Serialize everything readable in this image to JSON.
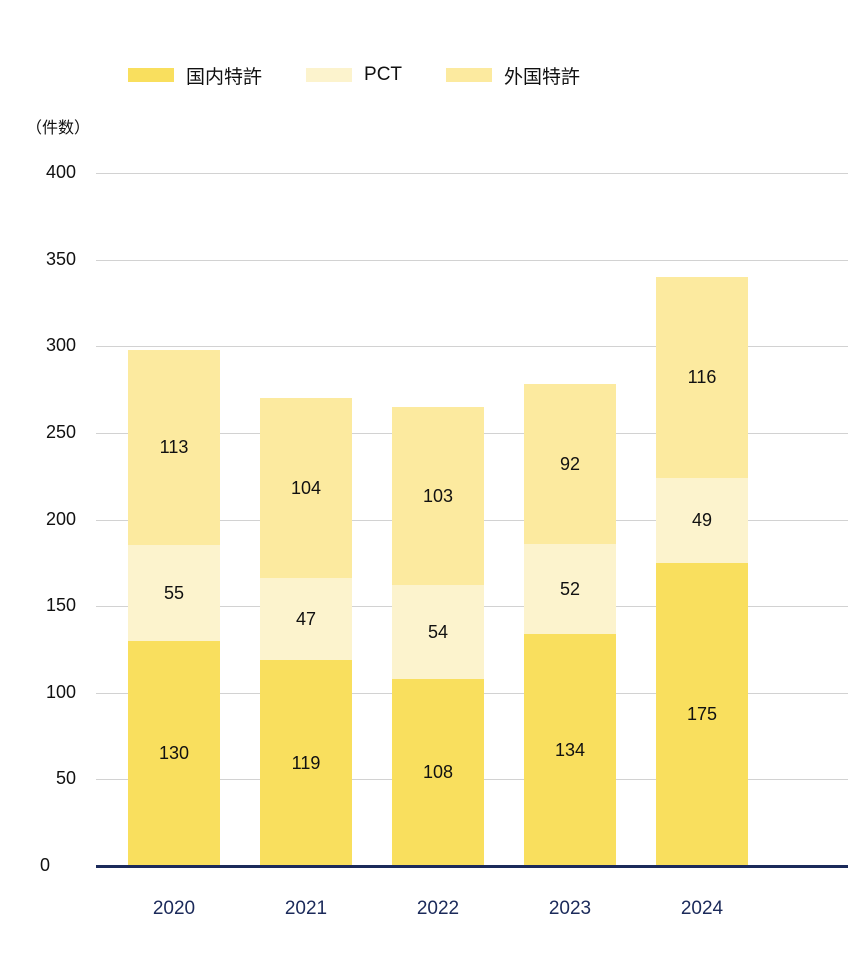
{
  "chart_data": {
    "type": "bar",
    "stacked": true,
    "title": "",
    "xlabel": "",
    "ylabel": "（件数）",
    "ylim": [
      0,
      400
    ],
    "yticks": [
      0,
      50,
      100,
      150,
      200,
      250,
      300,
      350,
      400
    ],
    "grid": true,
    "legend_position": "top-left",
    "categories": [
      "2020",
      "2021",
      "2022",
      "2023",
      "2024"
    ],
    "series": [
      {
        "name": "国内特許",
        "color": "#f9df5e",
        "values": [
          130,
          119,
          108,
          134,
          175
        ]
      },
      {
        "name": "PCT",
        "color": "#fcf3cd",
        "values": [
          55,
          47,
          54,
          52,
          49
        ]
      },
      {
        "name": "外国特許",
        "color": "#fcea9f",
        "values": [
          113,
          104,
          103,
          92,
          116
        ]
      }
    ],
    "totals": [
      298,
      270,
      265,
      278,
      340
    ]
  },
  "legend": [
    {
      "label": "国内特許",
      "color": "#f9df5e"
    },
    {
      "label": "PCT",
      "color": "#fcf3cd"
    },
    {
      "label": "外国特許",
      "color": "#fcea9f"
    }
  ],
  "y_axis": {
    "unit_label": "（件数）",
    "ticks": [
      "0",
      "50",
      "100",
      "150",
      "200",
      "250",
      "300",
      "350",
      "400"
    ]
  },
  "x_axis": {
    "labels": [
      "2020",
      "2021",
      "2022",
      "2023",
      "2024"
    ]
  },
  "colors": {
    "axis": "#1b2a5a",
    "grid": "#d2d2d2",
    "x_label": "#1b2a5a"
  }
}
